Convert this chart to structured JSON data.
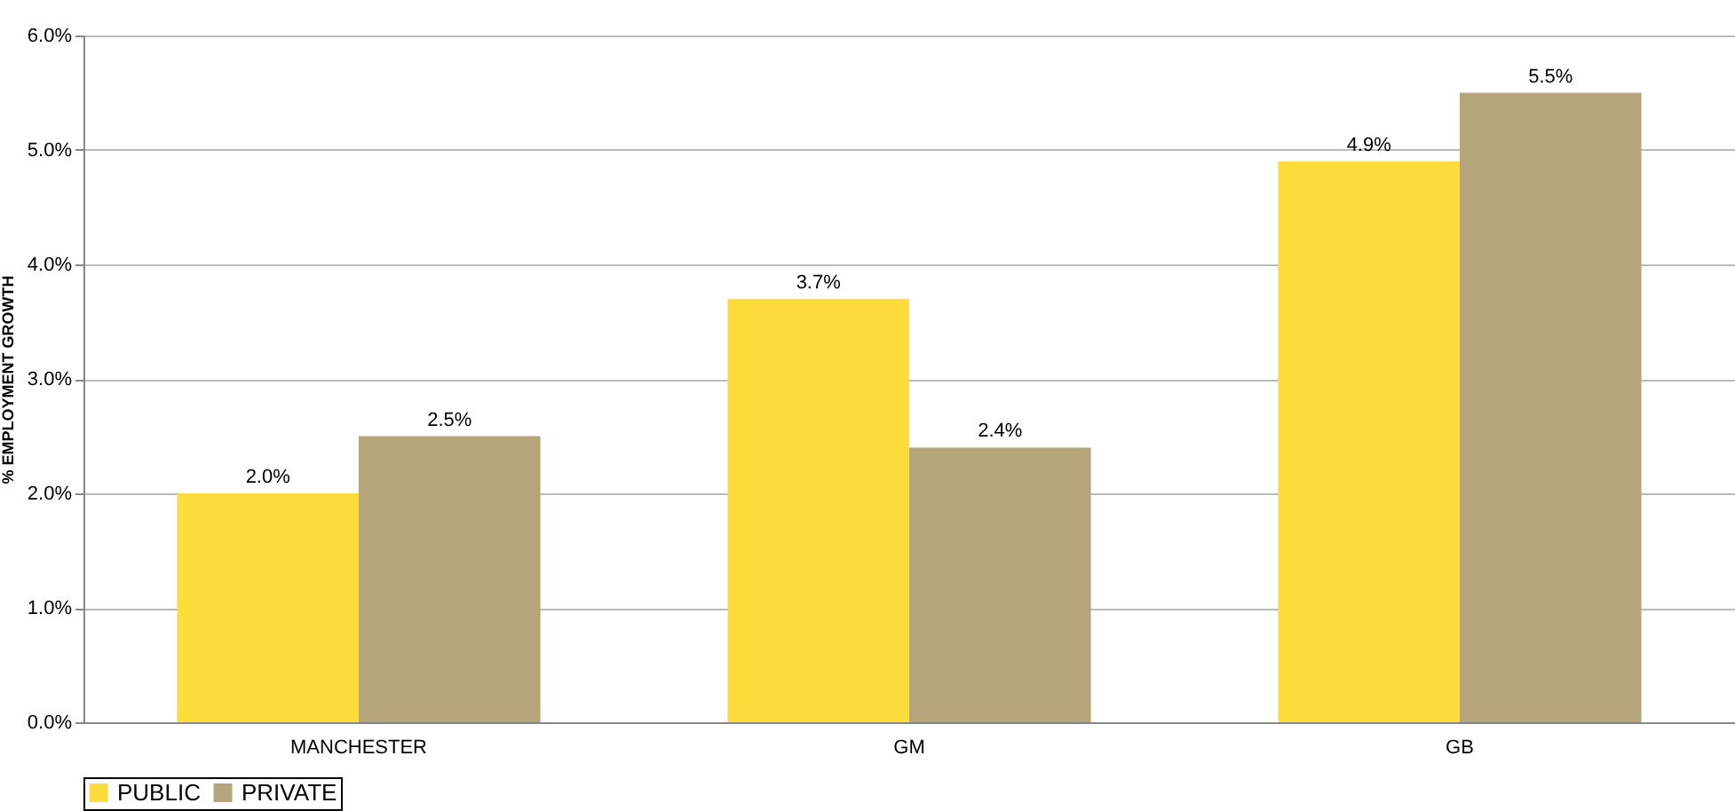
{
  "chart_data": {
    "type": "bar",
    "ylabel": "% EMPLOYMENT GROWTH",
    "categories": [
      "MANCHESTER",
      "GM",
      "GB"
    ],
    "series": [
      {
        "name": "PUBLIC",
        "color": "#fddc3c",
        "values": [
          2.0,
          3.7,
          4.9
        ],
        "value_labels": [
          "2.0%",
          "3.7%",
          "4.9%"
        ]
      },
      {
        "name": "PRIVATE",
        "color": "#b5a57b",
        "values": [
          2.5,
          2.4,
          5.5
        ],
        "value_labels": [
          "2.5%",
          "2.4%",
          "5.5%"
        ]
      }
    ],
    "ylim": [
      0,
      6
    ],
    "yticks": [
      {
        "value": 0,
        "label": "0.0%"
      },
      {
        "value": 1,
        "label": "1.0%"
      },
      {
        "value": 2,
        "label": "2.0%"
      },
      {
        "value": 3,
        "label": "3.0%"
      },
      {
        "value": 4,
        "label": "4.0%"
      },
      {
        "value": 5,
        "label": "5.0%"
      },
      {
        "value": 6,
        "label": "6.0%"
      }
    ],
    "grid": "y",
    "legend": "bottom"
  }
}
